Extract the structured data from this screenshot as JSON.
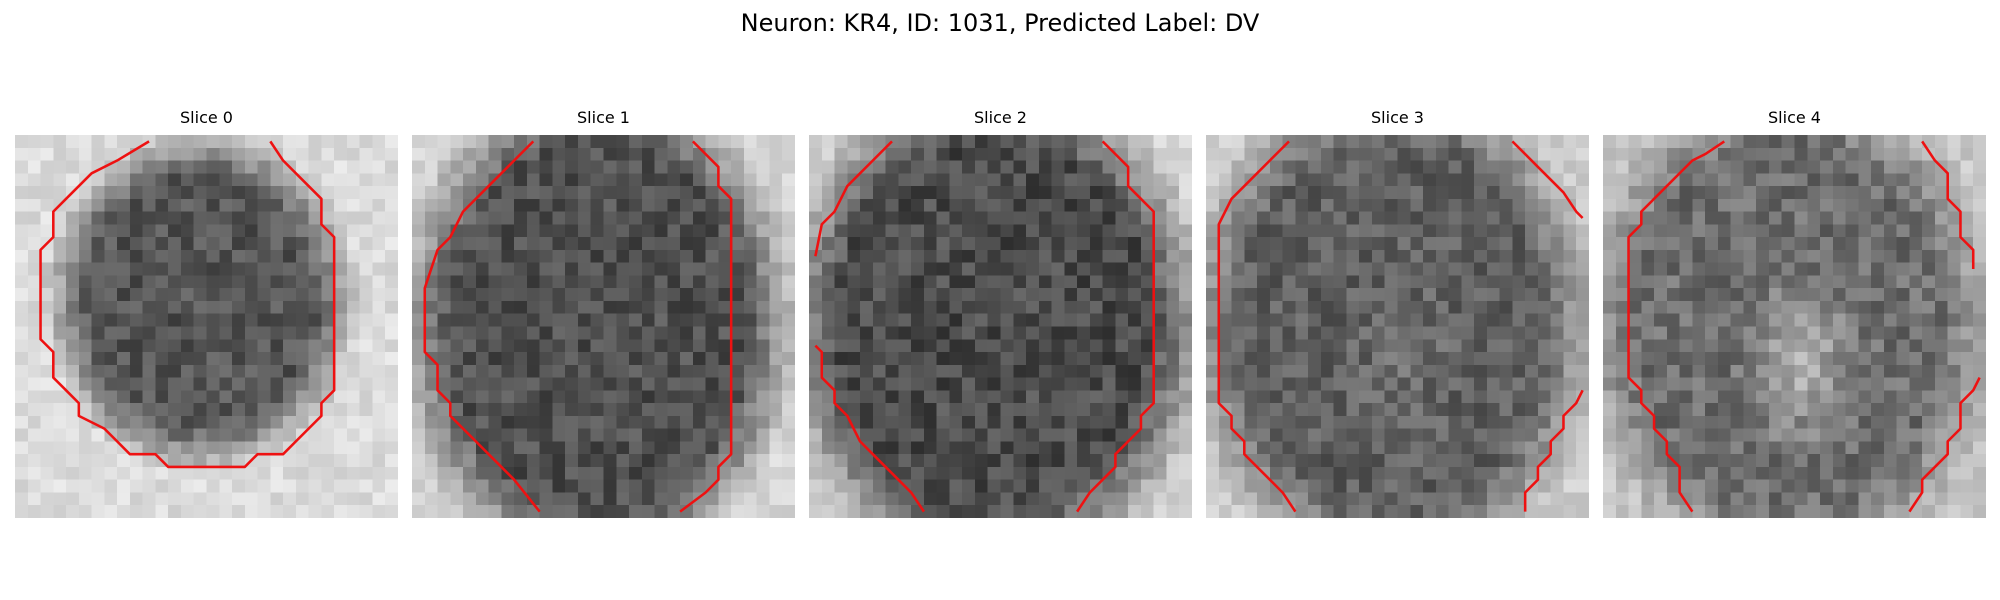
{
  "figure": {
    "title": "Neuron: KR4, ID: 1031, Predicted Label: DV"
  },
  "slices": [
    {
      "label": "Slice 0",
      "seed": 11,
      "roi": "closed-ellipse",
      "brightness": "darker-core"
    },
    {
      "label": "Slice 1",
      "seed": 23,
      "roi": "side-arcs",
      "brightness": "dark-core"
    },
    {
      "label": "Slice 2",
      "seed": 37,
      "roi": "side-arcs",
      "brightness": "dark-core"
    },
    {
      "label": "Slice 3",
      "seed": 41,
      "roi": "side-arcs",
      "brightness": "medium-core"
    },
    {
      "label": "Slice 4",
      "seed": 59,
      "roi": "side-arcs",
      "brightness": "bright-center"
    }
  ],
  "colors": {
    "contour": "#ee1111",
    "background": "#ffffff"
  }
}
